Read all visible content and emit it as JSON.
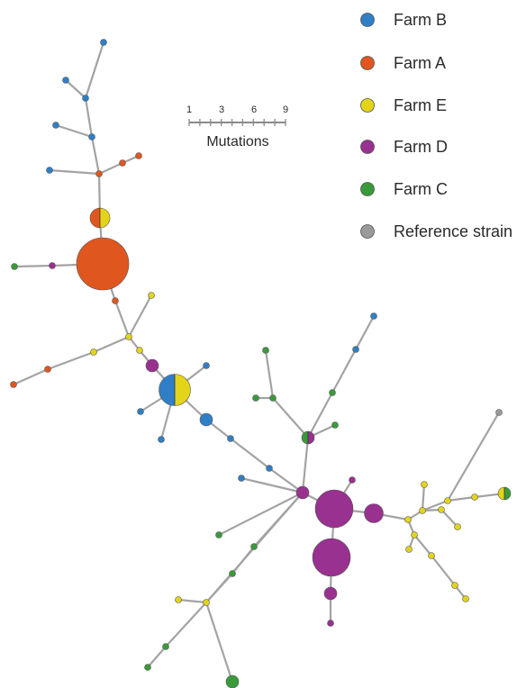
{
  "colors": {
    "farm_b": "#2f7fc6",
    "farm_a": "#e0561f",
    "farm_e": "#e3d41a",
    "farm_d": "#98318f",
    "farm_c": "#3a9a3a",
    "reference": "#9a9a9a",
    "edge": "#a3a3a3",
    "node_stroke": "#555555"
  },
  "legend": [
    {
      "label": "Farm B",
      "color": "#2f7fc6"
    },
    {
      "label": "Farm A",
      "color": "#e0561f"
    },
    {
      "label": "Farm E",
      "color": "#e3d41a"
    },
    {
      "label": "Farm D",
      "color": "#98318f"
    },
    {
      "label": "Farm C",
      "color": "#3a9a3a"
    },
    {
      "label": "Reference strain",
      "color": "#9a9a9a"
    }
  ],
  "scale_bar": {
    "tick_labels": [
      "1",
      "3",
      "6",
      "9"
    ],
    "title": "Mutations"
  }
}
